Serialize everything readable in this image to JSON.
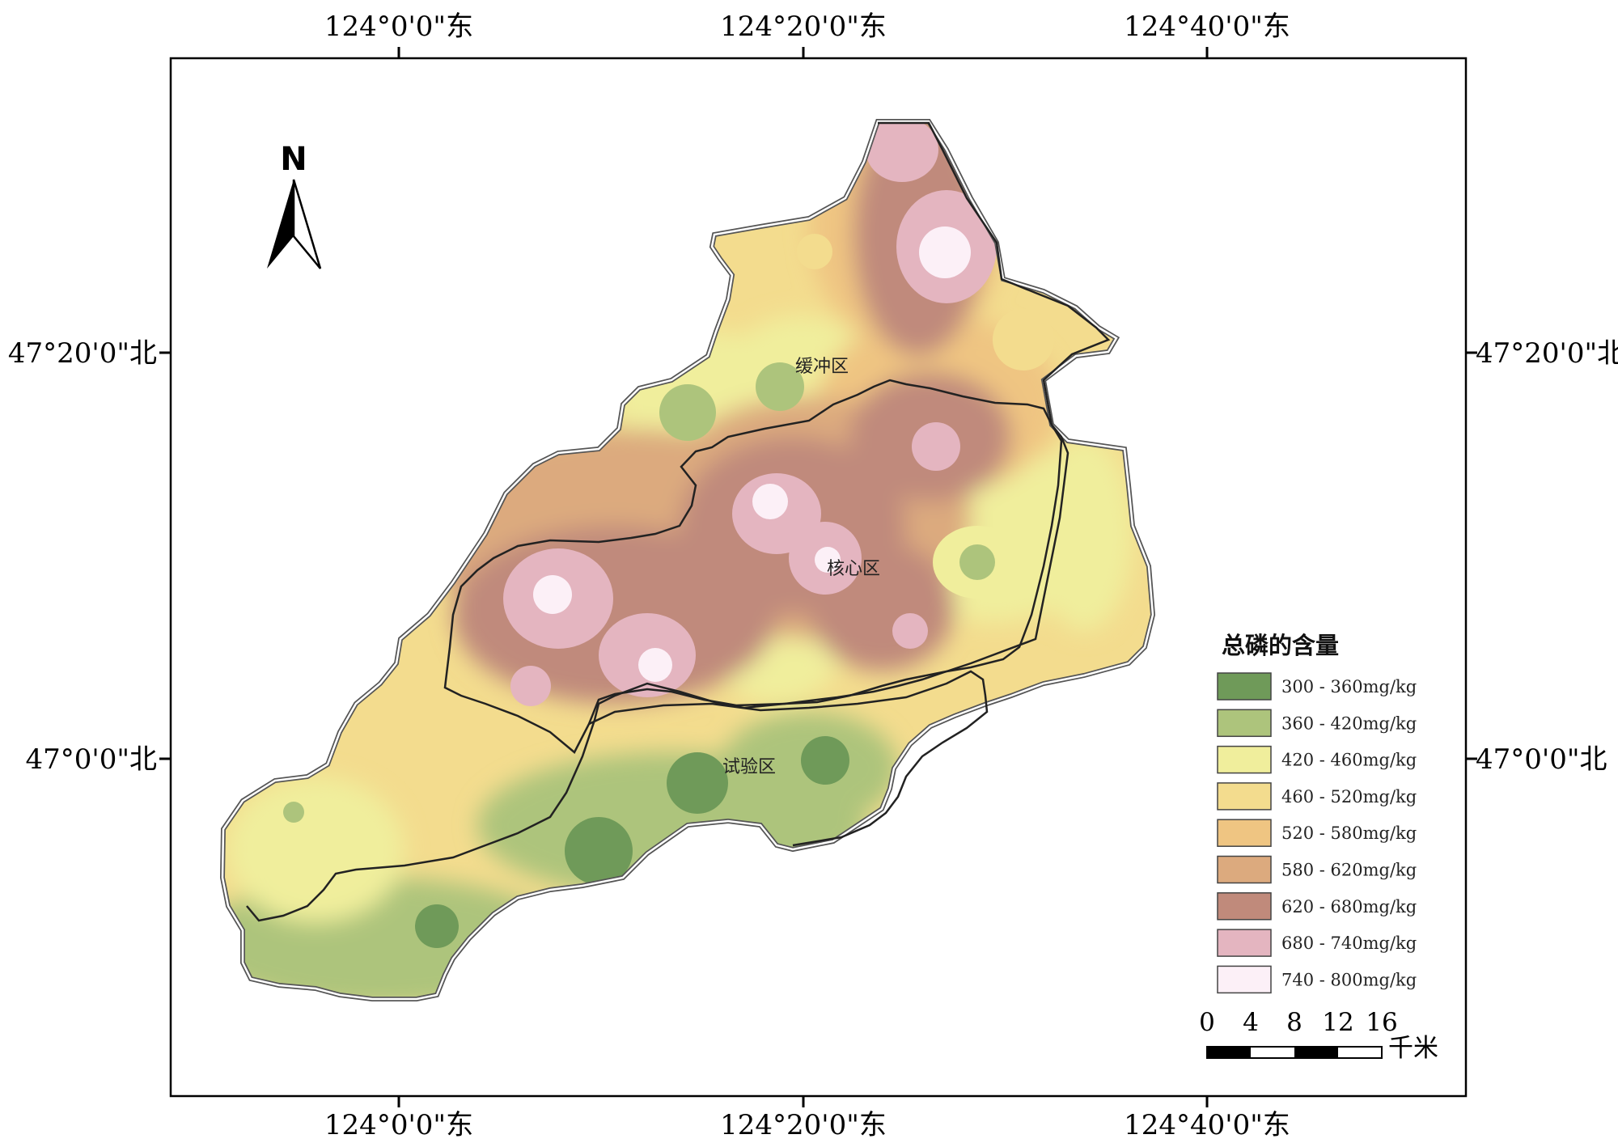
{
  "axes": {
    "top_labels": [
      "124°0'0\"东",
      "124°20'0\"东",
      "124°40'0\"东"
    ],
    "bottom_labels": [
      "124°0'0\"东",
      "124°20'0\"东",
      "124°40'0\"东"
    ],
    "left_labels": [
      "47°20'0\"北",
      "47°0'0\"北"
    ],
    "right_labels": [
      "47°20'0\"北",
      "47°0'0\"北"
    ]
  },
  "north_arrow": {
    "label": "N",
    "icon": "north-arrow-icon"
  },
  "zones": [
    {
      "label": "缓冲区"
    },
    {
      "label": "核心区"
    },
    {
      "label": "试验区"
    }
  ],
  "legend": {
    "title": "总磷的含量",
    "items": [
      {
        "label": "300 - 360mg/kg",
        "color": "#6f9a59"
      },
      {
        "label": "360 - 420mg/kg",
        "color": "#adc47c"
      },
      {
        "label": "420 - 460mg/kg",
        "color": "#f0ee9c"
      },
      {
        "label": "460 - 520mg/kg",
        "color": "#f3dc8e"
      },
      {
        "label": "520 - 580mg/kg",
        "color": "#efc582"
      },
      {
        "label": "580 - 620mg/kg",
        "color": "#dcaa7e"
      },
      {
        "label": "620 - 680mg/kg",
        "color": "#c08a7b"
      },
      {
        "label": "680 - 740mg/kg",
        "color": "#e4b5c0"
      },
      {
        "label": "740 - 800mg/kg",
        "color": "#fcf0f7"
      }
    ]
  },
  "scale_bar": {
    "ticks": [
      "0",
      "4",
      "8",
      "12",
      "16"
    ],
    "unit": "千米"
  }
}
